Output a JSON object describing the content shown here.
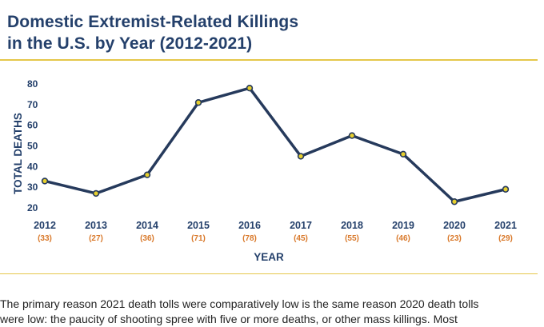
{
  "page": {
    "title_line1": "Domestic Extremist-Related Killings",
    "title_line2": "in the U.S. by Year (2012-2021)"
  },
  "colors": {
    "title": "#24406b",
    "line": "#263a5c",
    "marker_fill": "#e6cf2e",
    "value_label": "#d9792b",
    "rule": "#e5c74a"
  },
  "chart_data": {
    "type": "line",
    "title": "Domestic Extremist-Related Killings in the U.S. by Year (2012-2021)",
    "xlabel": "YEAR",
    "ylabel": "TOTAL DEATHS",
    "categories": [
      "2012",
      "2013",
      "2014",
      "2015",
      "2016",
      "2017",
      "2018",
      "2019",
      "2020",
      "2021"
    ],
    "value_labels": [
      "(33)",
      "(27)",
      "(36)",
      "(71)",
      "(78)",
      "(45)",
      "(55)",
      "(46)",
      "(23)",
      "(29)"
    ],
    "values": [
      33,
      27,
      36,
      71,
      78,
      45,
      55,
      46,
      23,
      29
    ],
    "ylim": [
      20,
      80
    ],
    "yticks": [
      20,
      30,
      40,
      50,
      60,
      70,
      80
    ],
    "grid": false,
    "legend": "none"
  },
  "body": {
    "line1": "The primary reason 2021 death tolls were comparatively low is the same reason 2020 death tolls",
    "line2": "were low: the paucity of shooting spree with five or more deaths, or other mass killings. Most"
  }
}
